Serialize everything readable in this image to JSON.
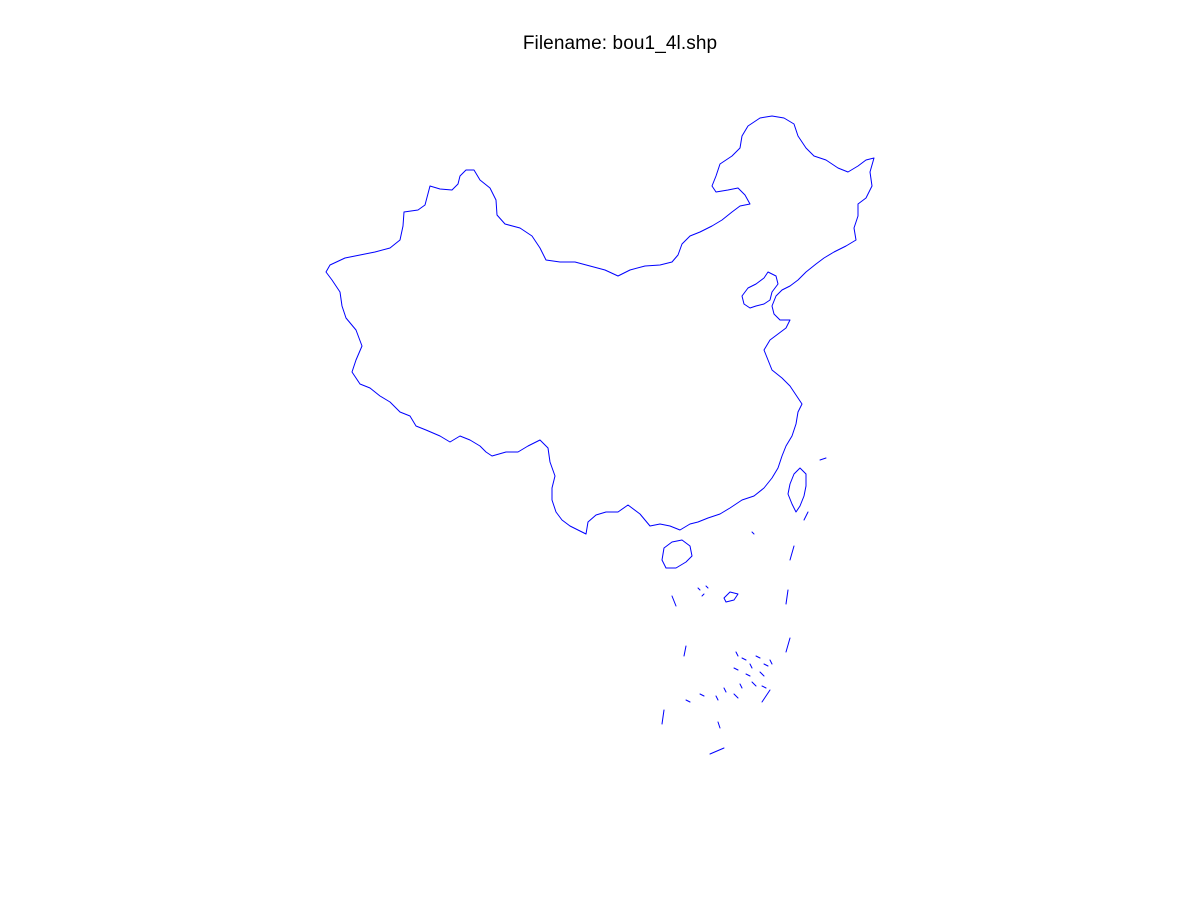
{
  "figure": {
    "title": "Filename: bou1_4l.shp"
  },
  "colors": {
    "background": "#ffffff",
    "boundary_line": "#0000ff",
    "title_text": "#000000"
  }
}
